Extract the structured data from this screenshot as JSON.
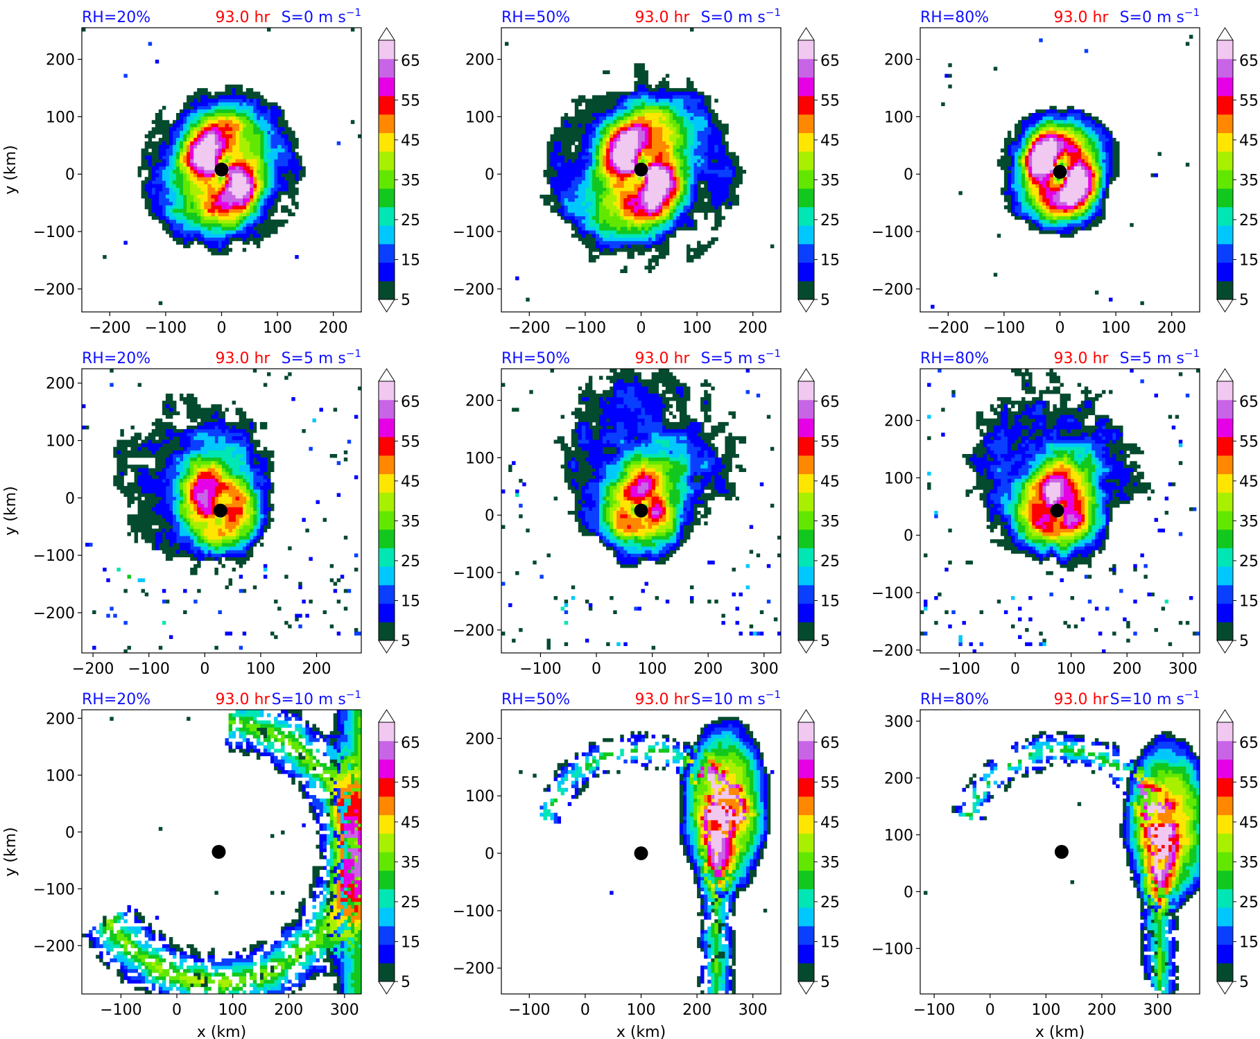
{
  "figure": {
    "time_label": "93.0 hr",
    "colors": {
      "rh_label": "#1010ff",
      "time_label": "#ff0000",
      "shear_label": "#1010ff",
      "storm_center": "#000000",
      "axes": "#000000"
    }
  },
  "colorbar": {
    "levels": [
      5,
      10,
      15,
      20,
      25,
      30,
      35,
      40,
      45,
      50,
      55,
      60,
      65,
      70
    ],
    "tick_labels": [
      "5",
      "15",
      "25",
      "35",
      "45",
      "55",
      "65"
    ],
    "tick_values": [
      5,
      15,
      25,
      35,
      45,
      55,
      65
    ],
    "extend": "both",
    "colors": [
      "#044a2e",
      "#0000ff",
      "#0a3fff",
      "#00c8ff",
      "#00e6b4",
      "#12c81e",
      "#62e800",
      "#a8f000",
      "#ffe600",
      "#ff8800",
      "#ff0000",
      "#e600e6",
      "#c864e6",
      "#f0c8f0"
    ]
  },
  "chart_data": [
    {
      "type": "heatmap",
      "rh_label": "RH=20%",
      "time_label": "93.0 hr",
      "shear_label": "S=0 m s",
      "shear_exp": "−1",
      "xlabel": "",
      "ylabel": "y (km)",
      "xlim": [
        -250,
        250
      ],
      "ylim": [
        -240,
        255
      ],
      "xticks": [
        -200,
        -100,
        0,
        100,
        200
      ],
      "xtick_labels": [
        "−200",
        "−100",
        "0",
        "100",
        "200"
      ],
      "yticks": [
        -200,
        -100,
        0,
        100,
        200
      ],
      "ytick_labels": [
        "−200",
        "−100",
        "0",
        "100",
        "200"
      ],
      "center": [
        0,
        8
      ],
      "field": {
        "style": "spiral",
        "intensity": 0.85,
        "extent": 150,
        "arms": 2
      }
    },
    {
      "type": "heatmap",
      "rh_label": "RH=50%",
      "time_label": "93.0 hr",
      "shear_label": "S=0 m s",
      "shear_exp": "−1",
      "xlabel": "",
      "ylabel": "",
      "xlim": [
        -250,
        250
      ],
      "ylim": [
        -240,
        255
      ],
      "xticks": [
        -200,
        -100,
        0,
        100,
        200
      ],
      "xtick_labels": [
        "−200",
        "−100",
        "0",
        "100",
        "200"
      ],
      "yticks": [
        -200,
        -100,
        0,
        100,
        200
      ],
      "ytick_labels": [
        "−200",
        "−100",
        "0",
        "100",
        "200"
      ],
      "center": [
        0,
        8
      ],
      "field": {
        "style": "spiral",
        "intensity": 0.9,
        "extent": 185,
        "arms": 2
      }
    },
    {
      "type": "heatmap",
      "rh_label": "RH=80%",
      "time_label": "93.0 hr",
      "shear_label": "S=0 m s",
      "shear_exp": "−1",
      "xlabel": "",
      "ylabel": "",
      "xlim": [
        -250,
        250
      ],
      "ylim": [
        -240,
        255
      ],
      "xticks": [
        -200,
        -100,
        0,
        100,
        200
      ],
      "xtick_labels": [
        "−200",
        "−100",
        "0",
        "100",
        "200"
      ],
      "yticks": [
        -200,
        -100,
        0,
        100,
        200
      ],
      "ytick_labels": [
        "−200",
        "−100",
        "0",
        "100",
        "200"
      ],
      "center": [
        0,
        4
      ],
      "field": {
        "style": "compact",
        "intensity": 1.0,
        "extent": 115,
        "arms": 2
      }
    },
    {
      "type": "heatmap",
      "rh_label": "RH=20%",
      "time_label": "93.0 hr",
      "shear_label": "S=5 m s",
      "shear_exp": "−1",
      "xlabel": "",
      "ylabel": "y (km)",
      "xlim": [
        -220,
        280
      ],
      "ylim": [
        -270,
        225
      ],
      "xticks": [
        -200,
        -100,
        0,
        100,
        200
      ],
      "xtick_labels": [
        "−200",
        "−100",
        "0",
        "100",
        "200"
      ],
      "yticks": [
        -200,
        -100,
        0,
        100,
        200
      ],
      "ytick_labels": [
        "−200",
        "−100",
        "0",
        "100",
        "200"
      ],
      "center": [
        28,
        -22
      ],
      "field": {
        "style": "sheared",
        "intensity": 0.85,
        "extent": 190,
        "arms": 2,
        "shift": [
          -40,
          60
        ]
      }
    },
    {
      "type": "heatmap",
      "rh_label": "RH=50%",
      "time_label": "93.0 hr",
      "shear_label": "S=5 m s",
      "shear_exp": "−1",
      "xlabel": "",
      "ylabel": "",
      "xlim": [
        -170,
        330
      ],
      "ylim": [
        -240,
        255
      ],
      "xticks": [
        -100,
        0,
        100,
        200,
        300
      ],
      "xtick_labels": [
        "−100",
        "0",
        "100",
        "200",
        "300"
      ],
      "yticks": [
        -200,
        -100,
        0,
        100,
        200
      ],
      "ytick_labels": [
        "−200",
        "−100",
        "0",
        "100",
        "200"
      ],
      "center": [
        80,
        8
      ],
      "field": {
        "style": "sheared",
        "intensity": 0.9,
        "extent": 210,
        "arms": 3,
        "shift": [
          10,
          90
        ]
      }
    },
    {
      "type": "heatmap",
      "rh_label": "RH=80%",
      "time_label": "93.0 hr",
      "shear_label": "S=5 m s",
      "shear_exp": "−1",
      "xlabel": "",
      "ylabel": "",
      "xlim": [
        -170,
        330
      ],
      "ylim": [
        -205,
        290
      ],
      "xticks": [
        -100,
        0,
        100,
        200,
        300
      ],
      "xtick_labels": [
        "−100",
        "0",
        "100",
        "200",
        "300"
      ],
      "yticks": [
        -200,
        -100,
        0,
        100,
        200
      ],
      "ytick_labels": [
        "−200",
        "−100",
        "0",
        "100",
        "200"
      ],
      "center": [
        75,
        43
      ],
      "field": {
        "style": "sheared",
        "intensity": 1.0,
        "extent": 200,
        "arms": 3,
        "shift": [
          0,
          80
        ]
      }
    },
    {
      "type": "heatmap",
      "rh_label": "RH=20%",
      "time_label": "93.0 hr",
      "shear_label": "S=10 m s",
      "shear_exp": "−1",
      "xlabel": "x (km)",
      "ylabel": "y (km)",
      "xlim": [
        -170,
        330
      ],
      "ylim": [
        -285,
        215
      ],
      "xticks": [
        -100,
        0,
        100,
        200,
        300
      ],
      "xtick_labels": [
        "−100",
        "0",
        "100",
        "200",
        "300"
      ],
      "yticks": [
        -200,
        -100,
        0,
        100,
        200
      ],
      "ytick_labels": [
        "−200",
        "−100",
        "0",
        "100",
        "200"
      ],
      "center": [
        75,
        -35
      ],
      "field": {
        "style": "band",
        "intensity": 0.85,
        "extent": 250,
        "arms": 1,
        "shift": [
          250,
          0
        ]
      }
    },
    {
      "type": "heatmap",
      "rh_label": "RH=50%",
      "time_label": "93.0 hr",
      "shear_label": "S=10 m s",
      "shear_exp": "−1",
      "xlabel": "x (km)",
      "ylabel": "",
      "xlim": [
        -150,
        350
      ],
      "ylim": [
        -245,
        250
      ],
      "xticks": [
        -100,
        0,
        100,
        200,
        300
      ],
      "xtick_labels": [
        "−100",
        "0",
        "100",
        "200",
        "300"
      ],
      "yticks": [
        -200,
        -100,
        0,
        100,
        200
      ],
      "ytick_labels": [
        "−200",
        "−100",
        "0",
        "100",
        "200"
      ],
      "center": [
        100,
        0
      ],
      "field": {
        "style": "plume",
        "intensity": 1.0,
        "extent": 200,
        "arms": 1,
        "shift": [
          150,
          80
        ]
      }
    },
    {
      "type": "heatmap",
      "rh_label": "RH=80%",
      "time_label": "93.0 hr",
      "shear_label": "S=10 m s",
      "shear_exp": "−1",
      "xlabel": "x (km)",
      "ylabel": "",
      "xlim": [
        -125,
        375
      ],
      "ylim": [
        -180,
        320
      ],
      "xticks": [
        -100,
        0,
        100,
        200,
        300
      ],
      "xtick_labels": [
        "−100",
        "0",
        "100",
        "200",
        "300"
      ],
      "yticks": [
        -100,
        0,
        100,
        200,
        300
      ],
      "ytick_labels": [
        "−100",
        "0",
        "100",
        "200",
        "300"
      ],
      "center": [
        128,
        70
      ],
      "field": {
        "style": "plume",
        "intensity": 1.0,
        "extent": 220,
        "arms": 1,
        "shift": [
          190,
          50
        ]
      }
    }
  ]
}
